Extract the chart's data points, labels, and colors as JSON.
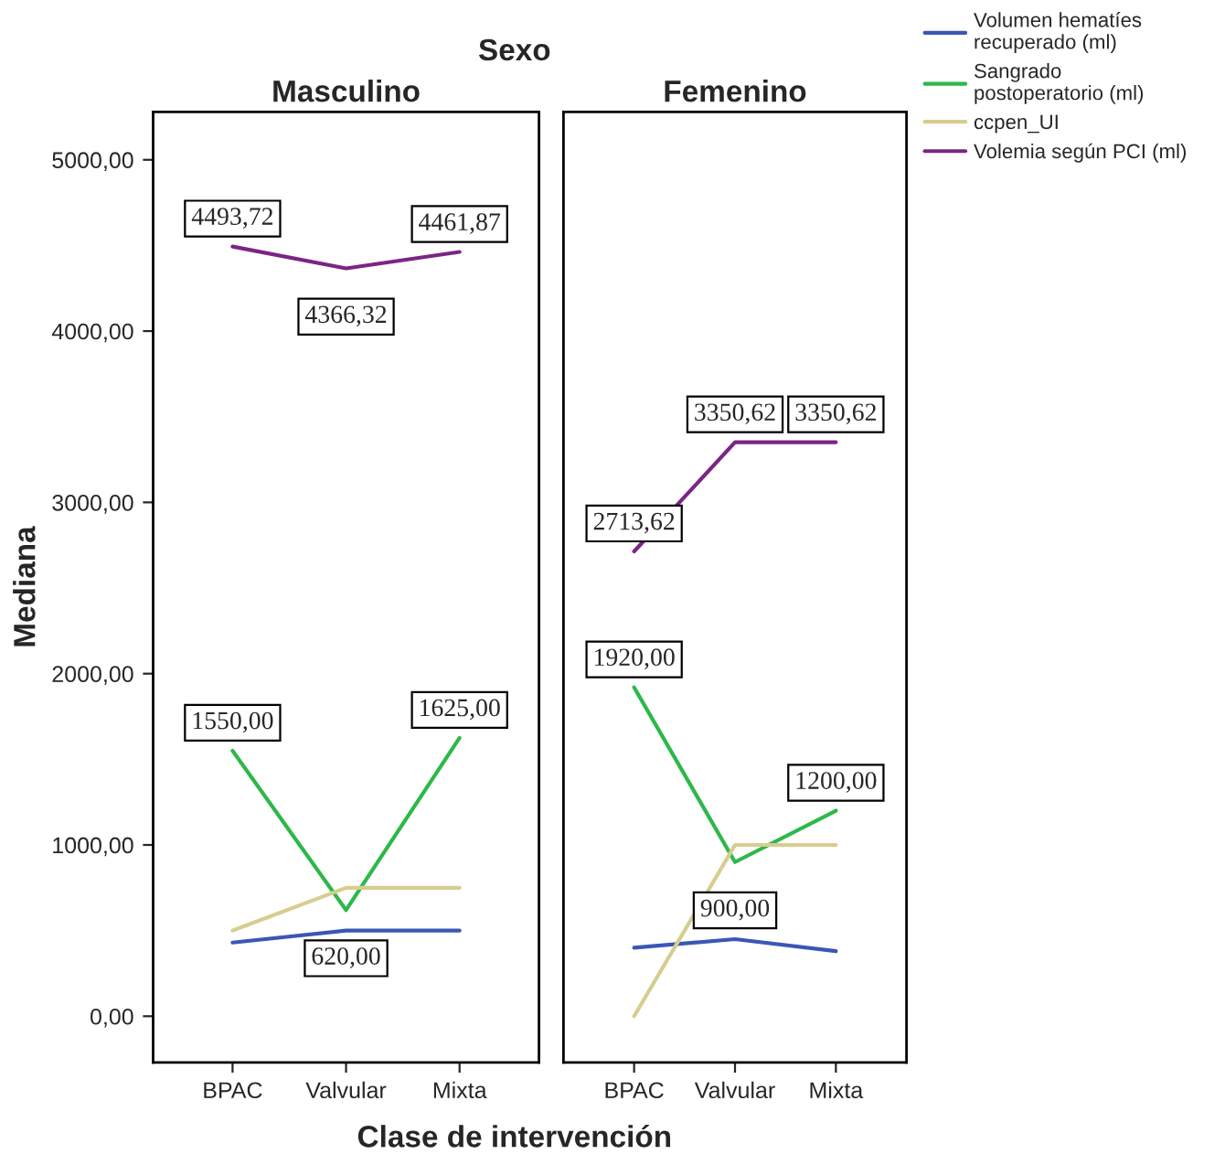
{
  "chart_data": [
    {
      "type": "line",
      "title": "Masculino",
      "xlabel": "Clase de intervención",
      "ylabel": "Mediana",
      "annotations": [
        "Sexo"
      ],
      "categories": [
        "BPAC",
        "Valvular",
        "Mixta"
      ],
      "ylim": [
        -270,
        5280
      ],
      "yticks": [
        {
          "value": 0,
          "label": "0,00"
        },
        {
          "value": 1000,
          "label": "1000,00"
        },
        {
          "value": 2000,
          "label": "2000,00"
        },
        {
          "value": 3000,
          "label": "3000,00"
        },
        {
          "value": 4000,
          "label": "4000,00"
        },
        {
          "value": 5000,
          "label": "5000,00"
        }
      ],
      "legend": "top right",
      "grid": false,
      "series": [
        {
          "name": "Volumen hematíes recuperado (ml)",
          "color": "#3b57b5",
          "values": [
            430,
            500,
            500
          ]
        },
        {
          "name": "Sangrado postoperatorio (ml)",
          "color": "#2db84a",
          "values": [
            1550,
            620,
            1625
          ],
          "value_labels": [
            "1550,00",
            "620,00",
            "1625,00"
          ]
        },
        {
          "name": "ccpen_UI",
          "color": "#d6cd8f",
          "values": [
            500,
            750,
            750
          ]
        },
        {
          "name": "Volemia según PCI (ml)",
          "color": "#7b2585",
          "values": [
            4493.72,
            4366.32,
            4461.87
          ],
          "value_labels": [
            "4493,72",
            "4366,32",
            "4461,87"
          ]
        }
      ]
    },
    {
      "type": "line",
      "title": "Femenino",
      "categories": [
        "BPAC",
        "Valvular",
        "Mixta"
      ],
      "ylim": [
        -270,
        5280
      ],
      "tick_labels": "x",
      "grid": false,
      "series": [
        {
          "color": "#3b57b5",
          "values": [
            400,
            450,
            380
          ]
        },
        {
          "color": "#2db84a",
          "values": [
            1920,
            900,
            1200
          ],
          "value_labels": [
            "1920,00",
            "900,00",
            "1200,00"
          ]
        },
        {
          "color": "#d6cd8f",
          "values": [
            0,
            1000,
            1000
          ]
        },
        {
          "color": "#7b2585",
          "values": [
            2713.62,
            3350.62,
            3350.62
          ],
          "value_labels": [
            "2713,62",
            "3350,62",
            "3350,62"
          ]
        }
      ]
    }
  ]
}
